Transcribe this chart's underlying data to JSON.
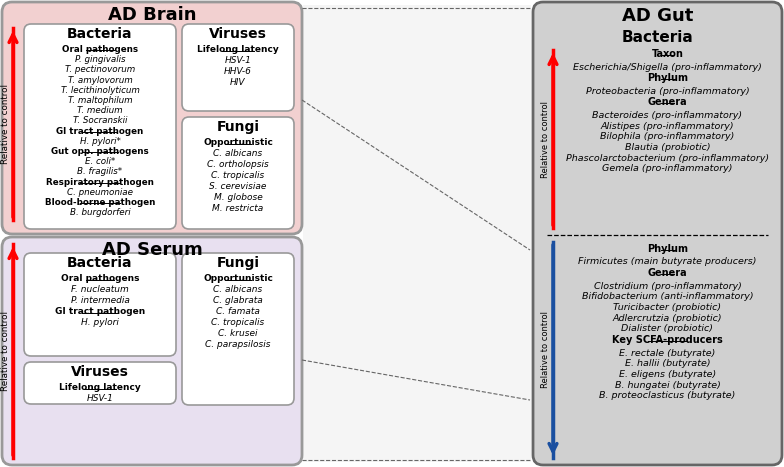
{
  "bg_color": "#ffffff",
  "brain_box_color": "#f2d0d0",
  "serum_box_color": "#e8e0f0",
  "gut_box_color": "#d0d0d0",
  "inner_box_color": "#ffffff",
  "brain_title": "AD Brain",
  "serum_title": "AD Serum",
  "gut_title": "AD Gut",
  "brain_bacteria_title": "Bacteria",
  "brain_bacteria_content": [
    [
      "Oral pathogens",
      true
    ],
    [
      "P. gingivalis",
      false
    ],
    [
      "T. pectinovorum",
      false
    ],
    [
      "T. amylovorum",
      false
    ],
    [
      "T. lecithinolyticum",
      false
    ],
    [
      "T. maltophilum",
      false
    ],
    [
      "T. medium",
      false
    ],
    [
      "T. Socranskii",
      false
    ],
    [
      "GI tract pathogen",
      true
    ],
    [
      "H. pylori*",
      false
    ],
    [
      "Gut opp. pathogens",
      true
    ],
    [
      "E. coli*",
      false
    ],
    [
      "B. fragilis*",
      false
    ],
    [
      "Respiratory pathogen",
      true
    ],
    [
      "C. pneumoniae",
      false
    ],
    [
      "Blood-borne pathogen",
      true
    ],
    [
      "B. burgdorferi",
      false
    ]
  ],
  "brain_viruses_title": "Viruses",
  "brain_viruses_content": [
    [
      "Lifelong latency",
      true
    ],
    [
      "HSV-1",
      false
    ],
    [
      "HHV-6",
      false
    ],
    [
      "HIV",
      false
    ]
  ],
  "brain_fungi_title": "Fungi",
  "brain_fungi_content": [
    [
      "Opportunistic",
      true
    ],
    [
      "C. albicans",
      false
    ],
    [
      "C. ortholopsis",
      false
    ],
    [
      "C. tropicalis",
      false
    ],
    [
      "S. cerevisiae",
      false
    ],
    [
      "M. globose",
      false
    ],
    [
      "M. restricta",
      false
    ]
  ],
  "serum_bacteria_title": "Bacteria",
  "serum_bacteria_content": [
    [
      "Oral pathogens",
      true
    ],
    [
      "F. nucleatum",
      false
    ],
    [
      "P. intermedia",
      false
    ],
    [
      "GI tract pathogen",
      true
    ],
    [
      "H. pylori",
      false
    ]
  ],
  "serum_viruses_title": "Viruses",
  "serum_viruses_content": [
    [
      "Lifelong latency",
      true
    ],
    [
      "HSV-1",
      false
    ]
  ],
  "serum_fungi_title": "Fungi",
  "serum_fungi_content": [
    [
      "Opportunistic",
      true
    ],
    [
      "C. albicans",
      false
    ],
    [
      "C. glabrata",
      false
    ],
    [
      "C. famata",
      false
    ],
    [
      "C. tropicalis",
      false
    ],
    [
      "C. krusei",
      false
    ],
    [
      "C. parapsilosis",
      false
    ]
  ],
  "gut_bacteria_title": "Bacteria",
  "gut_upper_content": [
    [
      "Taxon",
      true
    ],
    [
      "Escherichia/Shigella (pro-inflammatory)",
      false
    ],
    [
      "Phylum",
      true
    ],
    [
      "Proteobacteria (pro-inflammatory)",
      false
    ],
    [
      "Genera",
      true
    ],
    [
      "Bacteroides (pro-inflammatory)",
      false
    ],
    [
      "Alistipes (pro-inflammatory)",
      false
    ],
    [
      "Bilophila (pro-inflammatory)",
      false
    ],
    [
      "Blautia (probiotic)",
      false
    ],
    [
      "Phascolarctobacterium (pro-inflammatory)",
      false
    ],
    [
      "Gemela (pro-inflammatory)",
      false
    ]
  ],
  "gut_lower_content": [
    [
      "Phylum",
      true
    ],
    [
      "Firmicutes (main butyrate producers)",
      false
    ],
    [
      "Genera",
      true
    ],
    [
      "Clostridium (pro-inflammatory)",
      false
    ],
    [
      "Bifidobacterium (anti-inflammatory)",
      false
    ],
    [
      "Turicibacter (probiotic)",
      false
    ],
    [
      "Adlercrutzia (probiotic)",
      false
    ],
    [
      "Dialister (probiotic)",
      false
    ],
    [
      "Key SCFA-producers",
      true
    ],
    [
      "E. rectale (butyrate)",
      false
    ],
    [
      "E. hallii (butyrate)",
      false
    ],
    [
      "E. eligens (butyrate)",
      false
    ],
    [
      "B. hungatei (butyrate)",
      false
    ],
    [
      "B. proteoclasticus (butyrate)",
      false
    ]
  ]
}
